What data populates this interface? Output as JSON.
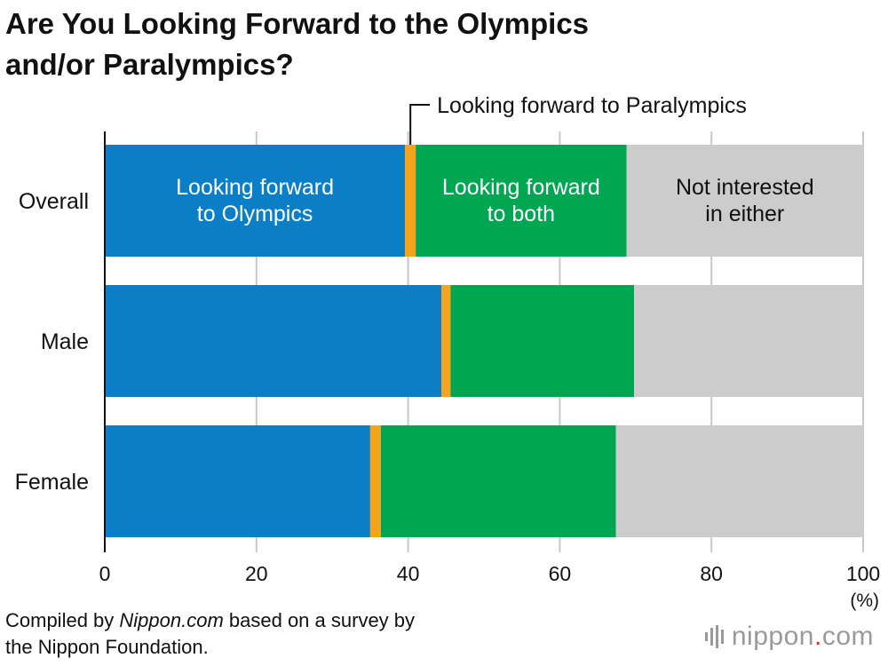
{
  "title_line1": "Are You Looking Forward to the Olympics",
  "title_line2": "and/or Paralympics?",
  "chart_data": {
    "type": "bar",
    "orientation": "horizontal",
    "stacked": true,
    "categories": [
      "Overall",
      "Male",
      "Female"
    ],
    "series": [
      {
        "name": "Looking forward to Olympics",
        "values": [
          39.6,
          44.4,
          35.0
        ],
        "color": "#0a7fc8",
        "label": [
          "Looking forward",
          "to Olympics"
        ],
        "label_color": "#ffffff"
      },
      {
        "name": "Looking forward to Paralympics",
        "values": [
          1.4,
          1.2,
          1.4
        ],
        "color": "#f7a41d"
      },
      {
        "name": "Looking forward to both",
        "values": [
          27.8,
          24.2,
          31.0
        ],
        "color": "#00a651",
        "label": [
          "Looking forward",
          "to both"
        ],
        "label_color": "#ffffff"
      },
      {
        "name": "Not interested in either",
        "values": [
          31.2,
          30.2,
          32.6
        ],
        "color": "#cccccc",
        "label": [
          "Not interested",
          "in either"
        ],
        "label_color": "#111111"
      }
    ],
    "callout": "Looking forward to Paralympics",
    "x_ticks": [
      0,
      20,
      40,
      60,
      80,
      100
    ],
    "x_unit": "(%)",
    "xlim": [
      0,
      100
    ],
    "grid": true
  },
  "footnote": {
    "prefix": "Compiled by ",
    "source": "Nippon.com",
    "suffix": " based on a survey by",
    "line2": "the Nippon Foundation."
  },
  "logo": {
    "name": "nippon",
    "dot": ".",
    "tld": "com"
  }
}
